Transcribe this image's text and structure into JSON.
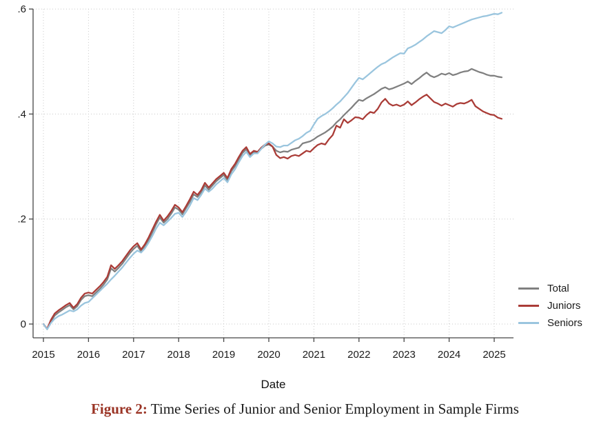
{
  "figure": {
    "caption_label": "Figure 2:",
    "caption_text": " Time Series of Junior and Senior Employment in Sample Firms"
  },
  "chart_data": {
    "type": "line",
    "title": "",
    "xlabel": "Date",
    "ylabel": "",
    "grid": "dotted horizontal and vertical",
    "x_ticks": [
      2015,
      2016,
      2017,
      2018,
      2019,
      2020,
      2021,
      2022,
      2023,
      2024,
      2025
    ],
    "y_ticks": [
      {
        "value": 0.0,
        "label": "0"
      },
      {
        "value": 0.2,
        "label": ".2"
      },
      {
        "value": 0.4,
        "label": ".4"
      },
      {
        "value": 0.6,
        "label": ".6"
      }
    ],
    "xlim": [
      2014.95,
      2025.45
    ],
    "ylim": [
      -0.02,
      0.6
    ],
    "x_start_year": 2015,
    "x_step_months": 1,
    "legend": {
      "position": "right",
      "entries": [
        {
          "label": "Total",
          "color": "#808080"
        },
        {
          "label": "Juniors",
          "color": "#aa3c37"
        },
        {
          "label": "Seniors",
          "color": "#9ac5de"
        }
      ]
    },
    "series": [
      {
        "name": "Total",
        "color": "#808080",
        "values": [
          0.0,
          -0.01,
          0.005,
          0.016,
          0.022,
          0.027,
          0.032,
          0.036,
          0.028,
          0.034,
          0.046,
          0.053,
          0.055,
          0.053,
          0.06,
          0.067,
          0.075,
          0.085,
          0.106,
          0.1,
          0.107,
          0.115,
          0.125,
          0.135,
          0.143,
          0.149,
          0.138,
          0.147,
          0.16,
          0.175,
          0.19,
          0.203,
          0.193,
          0.2,
          0.21,
          0.222,
          0.218,
          0.209,
          0.221,
          0.233,
          0.247,
          0.242,
          0.251,
          0.264,
          0.256,
          0.264,
          0.272,
          0.278,
          0.284,
          0.274,
          0.291,
          0.301,
          0.314,
          0.326,
          0.333,
          0.321,
          0.327,
          0.326,
          0.334,
          0.34,
          0.342,
          0.338,
          0.33,
          0.327,
          0.329,
          0.328,
          0.332,
          0.334,
          0.336,
          0.344,
          0.346,
          0.348,
          0.352,
          0.357,
          0.361,
          0.365,
          0.37,
          0.376,
          0.384,
          0.39,
          0.398,
          0.405,
          0.412,
          0.42,
          0.427,
          0.425,
          0.43,
          0.434,
          0.438,
          0.443,
          0.448,
          0.451,
          0.447,
          0.449,
          0.452,
          0.455,
          0.458,
          0.462,
          0.457,
          0.463,
          0.468,
          0.474,
          0.479,
          0.473,
          0.47,
          0.473,
          0.477,
          0.475,
          0.478,
          0.474,
          0.476,
          0.479,
          0.481,
          0.482,
          0.486,
          0.483,
          0.48,
          0.478,
          0.475,
          0.473,
          0.473,
          0.471,
          0.47
        ]
      },
      {
        "name": "Juniors",
        "color": "#aa3c37",
        "values": [
          0.0,
          -0.009,
          0.008,
          0.02,
          0.026,
          0.031,
          0.036,
          0.04,
          0.031,
          0.038,
          0.05,
          0.058,
          0.06,
          0.058,
          0.065,
          0.072,
          0.08,
          0.09,
          0.112,
          0.105,
          0.112,
          0.12,
          0.13,
          0.14,
          0.148,
          0.154,
          0.142,
          0.152,
          0.165,
          0.18,
          0.195,
          0.208,
          0.197,
          0.205,
          0.215,
          0.227,
          0.222,
          0.213,
          0.225,
          0.238,
          0.252,
          0.246,
          0.255,
          0.269,
          0.26,
          0.268,
          0.276,
          0.282,
          0.288,
          0.278,
          0.295,
          0.305,
          0.318,
          0.33,
          0.337,
          0.324,
          0.33,
          0.328,
          0.336,
          0.342,
          0.344,
          0.338,
          0.322,
          0.316,
          0.318,
          0.315,
          0.32,
          0.322,
          0.32,
          0.325,
          0.33,
          0.328,
          0.335,
          0.341,
          0.344,
          0.342,
          0.352,
          0.36,
          0.378,
          0.374,
          0.39,
          0.383,
          0.388,
          0.394,
          0.393,
          0.39,
          0.398,
          0.404,
          0.402,
          0.41,
          0.422,
          0.429,
          0.42,
          0.416,
          0.418,
          0.415,
          0.418,
          0.424,
          0.417,
          0.422,
          0.428,
          0.433,
          0.437,
          0.43,
          0.423,
          0.42,
          0.416,
          0.42,
          0.417,
          0.414,
          0.419,
          0.421,
          0.42,
          0.423,
          0.427,
          0.415,
          0.41,
          0.405,
          0.402,
          0.399,
          0.398,
          0.393,
          0.391
        ]
      },
      {
        "name": "Seniors",
        "color": "#9ac5de",
        "values": [
          0.0,
          -0.01,
          0.002,
          0.01,
          0.015,
          0.018,
          0.022,
          0.026,
          0.024,
          0.028,
          0.035,
          0.04,
          0.042,
          0.049,
          0.056,
          0.063,
          0.07,
          0.077,
          0.085,
          0.092,
          0.1,
          0.108,
          0.117,
          0.126,
          0.134,
          0.14,
          0.136,
          0.144,
          0.155,
          0.168,
          0.182,
          0.193,
          0.188,
          0.195,
          0.202,
          0.21,
          0.212,
          0.204,
          0.214,
          0.226,
          0.24,
          0.236,
          0.246,
          0.258,
          0.252,
          0.258,
          0.266,
          0.272,
          0.278,
          0.27,
          0.285,
          0.295,
          0.308,
          0.32,
          0.328,
          0.318,
          0.325,
          0.325,
          0.334,
          0.342,
          0.348,
          0.344,
          0.338,
          0.337,
          0.34,
          0.34,
          0.345,
          0.35,
          0.353,
          0.358,
          0.364,
          0.368,
          0.38,
          0.391,
          0.396,
          0.4,
          0.405,
          0.411,
          0.418,
          0.424,
          0.432,
          0.44,
          0.45,
          0.46,
          0.469,
          0.466,
          0.472,
          0.478,
          0.484,
          0.49,
          0.495,
          0.498,
          0.503,
          0.508,
          0.512,
          0.516,
          0.515,
          0.525,
          0.528,
          0.532,
          0.537,
          0.542,
          0.548,
          0.553,
          0.558,
          0.556,
          0.554,
          0.56,
          0.567,
          0.565,
          0.568,
          0.571,
          0.574,
          0.577,
          0.58,
          0.582,
          0.584,
          0.586,
          0.587,
          0.589,
          0.591,
          0.59,
          0.593
        ]
      }
    ]
  },
  "style_colors": {
    "axis": "#444444",
    "tick_label": "#1a1a1a",
    "gridline": "#c8c8c8",
    "caption_label_red": "#9a3324"
  }
}
